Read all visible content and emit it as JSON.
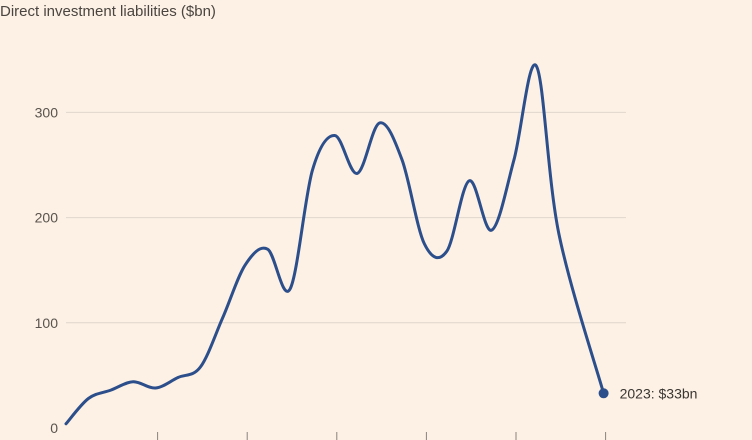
{
  "chart_data": {
    "type": "line",
    "title": "Direct investment liabilities ($bn)",
    "xlabel": "",
    "ylabel": "",
    "ylim": [
      0,
      350
    ],
    "yticks": [
      0,
      100,
      200,
      300
    ],
    "xlim": [
      1999,
      2024
    ],
    "x": [
      1999,
      2000,
      2001,
      2002,
      2003,
      2004,
      2005,
      2006,
      2007,
      2008,
      2009,
      2010,
      2011,
      2012,
      2013,
      2014,
      2015,
      2016,
      2017,
      2018,
      2019,
      2020,
      2021,
      2022,
      2023
    ],
    "series": [
      {
        "values": [
          4,
          28,
          36,
          44,
          38,
          48,
          58,
          105,
          155,
          170,
          132,
          245,
          278,
          242,
          290,
          255,
          175,
          168,
          235,
          188,
          255,
          344,
          185,
          33
        ],
        "x": [
          1999,
          2000,
          2001,
          2002,
          2003,
          2004,
          2005,
          2006,
          2007,
          2008,
          2009,
          2010,
          2011,
          2012,
          2013,
          2014,
          2015,
          2016,
          2017,
          2018,
          2019,
          2020,
          2021,
          2023
        ]
      }
    ],
    "grid": true,
    "annotation": "2023: $33bn",
    "colors": {
      "line": "#2c4f8b",
      "background": "#fdf1e5"
    }
  }
}
